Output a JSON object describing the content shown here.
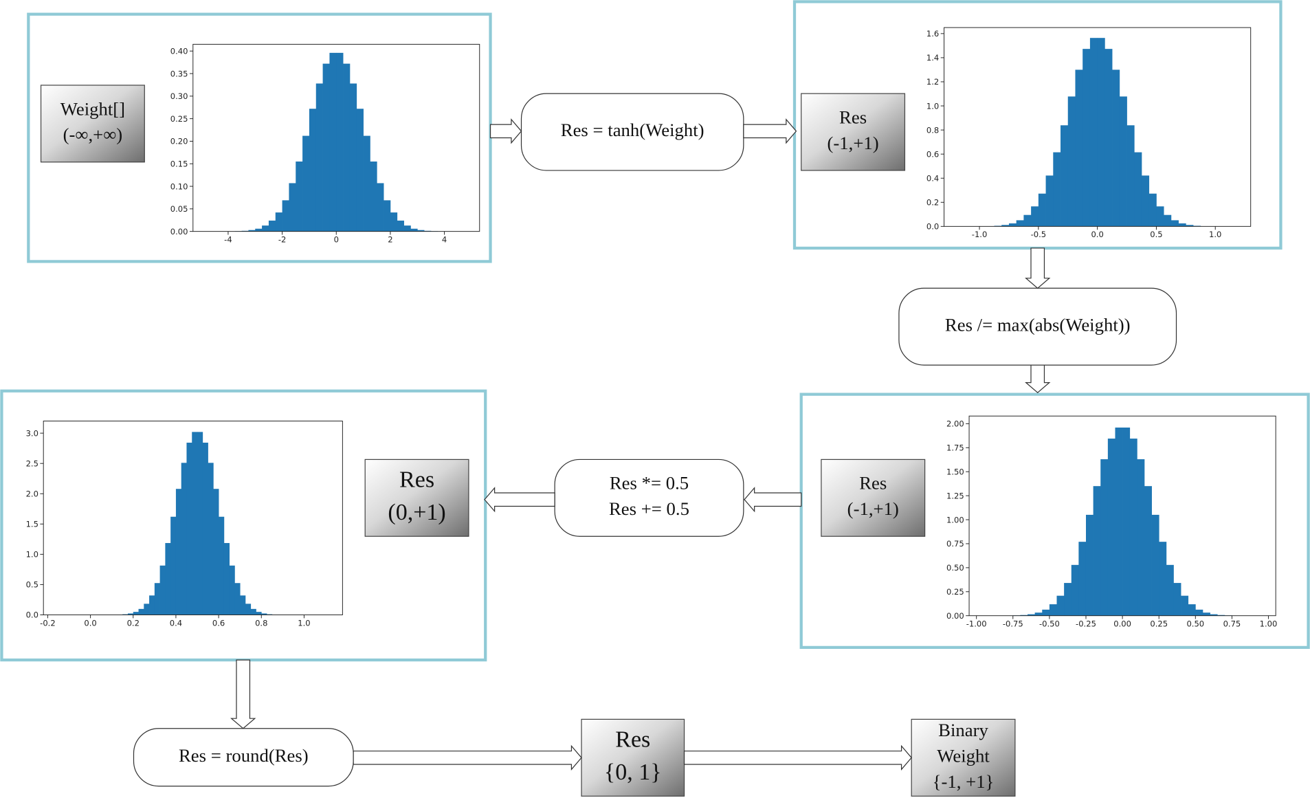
{
  "panels": [
    {
      "label": [
        "Weight[]",
        "(-∞,+∞)"
      ],
      "chart": {
        "type": "histogram",
        "color": "#1f77b4",
        "bins": [
          -4,
          -3.75,
          -3.5,
          -3.25,
          -3,
          -2.75,
          -2.5,
          -2.25,
          -2,
          -1.75,
          -1.5,
          -1.25,
          -1,
          -0.75,
          -0.5,
          -0.25,
          0,
          0.25,
          0.5,
          0.75,
          1,
          1.25,
          1.5,
          1.75,
          2,
          2.25,
          2.5,
          2.75,
          3,
          3.25,
          3.5,
          3.75,
          4
        ],
        "values": [
          0.0002,
          0.0006,
          0.0013,
          0.003,
          0.006,
          0.013,
          0.024,
          0.042,
          0.069,
          0.107,
          0.155,
          0.212,
          0.272,
          0.328,
          0.372,
          0.396,
          0.396,
          0.372,
          0.328,
          0.272,
          0.212,
          0.155,
          0.107,
          0.069,
          0.042,
          0.024,
          0.013,
          0.006,
          0.003,
          0.0013,
          0.0006,
          0.0002
        ],
        "xlim": [
          -5.3,
          5.3
        ],
        "ylim": [
          0,
          0.415
        ],
        "xticks": [
          -4,
          -2,
          0,
          2,
          4
        ],
        "yticks": [
          {
            "value": 0,
            "label": "0.00"
          },
          {
            "value": 0.05,
            "label": "0.05"
          },
          {
            "value": 0.1,
            "label": "0.10"
          },
          {
            "value": 0.15,
            "label": "0.15"
          },
          {
            "value": 0.2,
            "label": "0.20"
          },
          {
            "value": 0.25,
            "label": "0.25"
          },
          {
            "value": 0.3,
            "label": "0.30"
          },
          {
            "value": 0.35,
            "label": "0.35"
          },
          {
            "value": 0.4,
            "label": "0.40"
          }
        ]
      }
    },
    {
      "label": [
        "Res",
        "(-1,+1)"
      ],
      "chart": {
        "type": "histogram",
        "color": "#1f77b4",
        "bins": [
          -1,
          -0.9375,
          -0.875,
          -0.8125,
          -0.75,
          -0.6875,
          -0.625,
          -0.5625,
          -0.5,
          -0.4375,
          -0.375,
          -0.3125,
          -0.25,
          -0.1875,
          -0.125,
          -0.0625,
          0,
          0.0625,
          0.125,
          0.1875,
          0.25,
          0.3125,
          0.375,
          0.4375,
          0.5,
          0.5625,
          0.625,
          0.6875,
          0.75,
          0.8125,
          0.875,
          0.9375,
          1
        ],
        "values": [
          0.001,
          0.002,
          0.005,
          0.012,
          0.025,
          0.051,
          0.095,
          0.166,
          0.272,
          0.422,
          0.615,
          0.839,
          1.078,
          1.3,
          1.473,
          1.564,
          1.564,
          1.473,
          1.3,
          1.078,
          0.839,
          0.615,
          0.422,
          0.272,
          0.166,
          0.095,
          0.051,
          0.025,
          0.012,
          0.005,
          0.002,
          0.001
        ],
        "xlim": [
          -1.3,
          1.3
        ],
        "ylim": [
          0,
          1.65
        ],
        "xticks": [
          {
            "value": -1,
            "label": "-1.0"
          },
          {
            "value": -0.5,
            "label": "-0.5"
          },
          {
            "value": 0,
            "label": "0.0"
          },
          {
            "value": 0.5,
            "label": "0.5"
          },
          {
            "value": 1,
            "label": "1.0"
          }
        ],
        "yticks": [
          {
            "value": 0,
            "label": "0.0"
          },
          {
            "value": 0.2,
            "label": "0.2"
          },
          {
            "value": 0.4,
            "label": "0.4"
          },
          {
            "value": 0.6,
            "label": "0.6"
          },
          {
            "value": 0.8,
            "label": "0.8"
          },
          {
            "value": 1,
            "label": "1.0"
          },
          {
            "value": 1.2,
            "label": "1.2"
          },
          {
            "value": 1.4,
            "label": "1.4"
          },
          {
            "value": 1.6,
            "label": "1.6"
          }
        ]
      }
    },
    {
      "label": [
        "Res",
        "(-1,+1)"
      ],
      "chart": {
        "type": "histogram",
        "color": "#1f77b4",
        "bins": [
          -0.8,
          -0.75,
          -0.7,
          -0.65,
          -0.6,
          -0.55,
          -0.5,
          -0.45,
          -0.4,
          -0.35,
          -0.3,
          -0.25,
          -0.2,
          -0.15,
          -0.1,
          -0.05,
          0,
          0.05,
          0.1,
          0.15,
          0.2,
          0.25,
          0.3,
          0.35,
          0.4,
          0.45,
          0.5,
          0.55,
          0.6,
          0.65,
          0.7,
          0.75,
          0.8
        ],
        "values": [
          0.001,
          0.003,
          0.007,
          0.015,
          0.032,
          0.063,
          0.119,
          0.208,
          0.341,
          0.529,
          0.77,
          1.051,
          1.35,
          1.63,
          1.845,
          1.96,
          1.96,
          1.845,
          1.63,
          1.35,
          1.051,
          0.77,
          0.529,
          0.341,
          0.208,
          0.119,
          0.063,
          0.032,
          0.015,
          0.007,
          0.003,
          0.001
        ],
        "xlim": [
          -1.05,
          1.05
        ],
        "ylim": [
          0,
          2.08
        ],
        "xticks": [
          {
            "value": -1,
            "label": "-1.00"
          },
          {
            "value": -0.75,
            "label": "-0.75"
          },
          {
            "value": -0.5,
            "label": "-0.50"
          },
          {
            "value": -0.25,
            "label": "-0.25"
          },
          {
            "value": 0,
            "label": "0.00"
          },
          {
            "value": 0.25,
            "label": "0.25"
          },
          {
            "value": 0.5,
            "label": "0.50"
          },
          {
            "value": 0.75,
            "label": "0.75"
          },
          {
            "value": 1,
            "label": "1.00"
          }
        ],
        "yticks": [
          {
            "value": 0,
            "label": "0.00"
          },
          {
            "value": 0.25,
            "label": "0.25"
          },
          {
            "value": 0.5,
            "label": "0.50"
          },
          {
            "value": 0.75,
            "label": "0.75"
          },
          {
            "value": 1,
            "label": "1.00"
          },
          {
            "value": 1.25,
            "label": "1.25"
          },
          {
            "value": 1.5,
            "label": "1.50"
          },
          {
            "value": 1.75,
            "label": "1.75"
          },
          {
            "value": 2,
            "label": "2.00"
          }
        ]
      }
    },
    {
      "label": [
        "Res",
        "(0,+1)"
      ],
      "chart": {
        "type": "histogram",
        "color": "#1f77b4",
        "bins": [
          0.1,
          0.125,
          0.15,
          0.175,
          0.2,
          0.225,
          0.25,
          0.275,
          0.3,
          0.325,
          0.35,
          0.375,
          0.4,
          0.425,
          0.45,
          0.475,
          0.5,
          0.525,
          0.55,
          0.575,
          0.6,
          0.625,
          0.65,
          0.675,
          0.7,
          0.725,
          0.75,
          0.775,
          0.8,
          0.825,
          0.85,
          0.875,
          0.9
        ],
        "values": [
          0.002,
          0.004,
          0.01,
          0.023,
          0.049,
          0.098,
          0.183,
          0.32,
          0.525,
          0.814,
          1.186,
          1.62,
          2.08,
          2.51,
          2.843,
          3.02,
          3.02,
          2.843,
          2.51,
          2.08,
          1.62,
          1.186,
          0.814,
          0.525,
          0.32,
          0.183,
          0.098,
          0.049,
          0.023,
          0.01,
          0.004,
          0.002
        ],
        "xlim": [
          -0.22,
          1.18
        ],
        "ylim": [
          0,
          3.2
        ],
        "xticks": [
          {
            "value": -0.2,
            "label": "-0.2"
          },
          {
            "value": 0,
            "label": "0.0"
          },
          {
            "value": 0.2,
            "label": "0.2"
          },
          {
            "value": 0.4,
            "label": "0.4"
          },
          {
            "value": 0.6,
            "label": "0.6"
          },
          {
            "value": 0.8,
            "label": "0.8"
          },
          {
            "value": 1,
            "label": "1.0"
          }
        ],
        "yticks": [
          {
            "value": 0,
            "label": "0.0"
          },
          {
            "value": 0.5,
            "label": "0.5"
          },
          {
            "value": 1,
            "label": "1.0"
          },
          {
            "value": 1.5,
            "label": "1.5"
          },
          {
            "value": 2,
            "label": "2.0"
          },
          {
            "value": 2.5,
            "label": "2.5"
          },
          {
            "value": 3,
            "label": "3.0"
          }
        ]
      }
    }
  ],
  "operations": [
    {
      "lines": [
        "Res = tanh(Weight)"
      ]
    },
    {
      "lines": [
        "Res /= max(abs(Weight))"
      ]
    },
    {
      "lines": [
        "Res *= 0.5",
        "Res += 0.5"
      ]
    },
    {
      "lines": [
        "Res = round(Res)"
      ]
    }
  ],
  "outputs": [
    {
      "lines": [
        "Res",
        "{0, 1}"
      ]
    },
    {
      "lines": [
        "Binary",
        "Weight",
        "{-1, +1}"
      ]
    }
  ]
}
